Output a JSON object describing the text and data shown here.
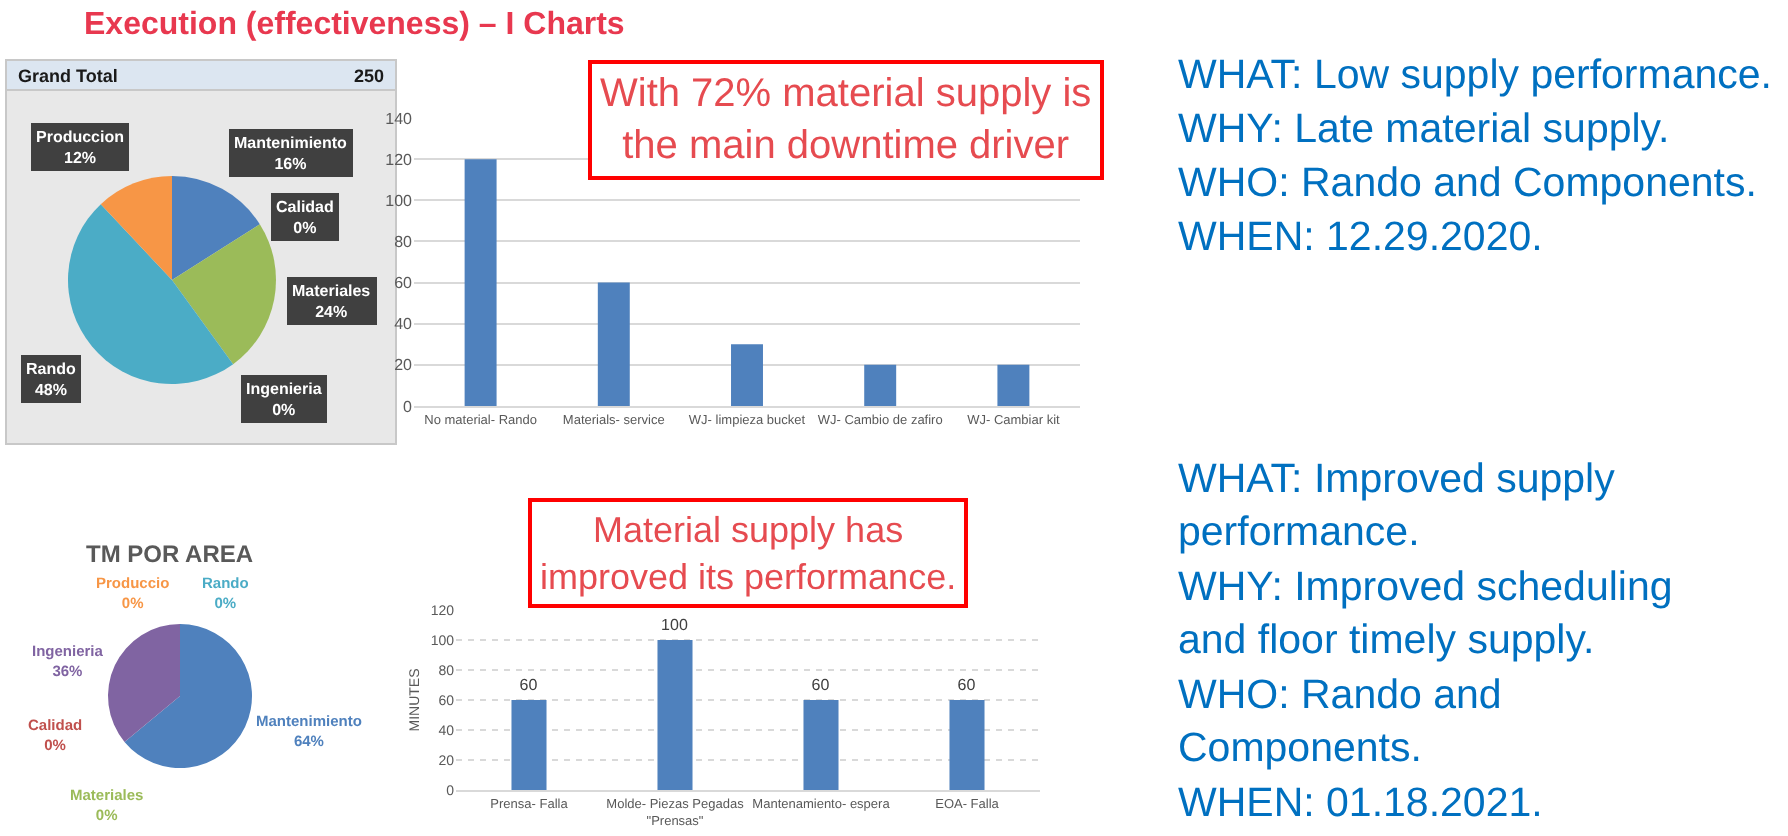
{
  "chart_data": [
    {
      "type": "pie",
      "title": "Execution (effectiveness) – I Charts",
      "subtitle": "Grand Total",
      "annotations": [
        "250"
      ],
      "categories": [
        "Mantenimiento",
        "Calidad",
        "Materiales",
        "Ingenieria",
        "Rando",
        "Produccion"
      ],
      "values": [
        16,
        0,
        24,
        0,
        48,
        12
      ],
      "value_labels": [
        "16%",
        "0%",
        "24%",
        "0%",
        "48%",
        "12%"
      ],
      "colors": [
        "#4f81bd",
        "#c0504d",
        "#9bbb59",
        "#8064a2",
        "#4bacc6",
        "#f79646"
      ]
    },
    {
      "type": "bar",
      "categories": [
        "No material- Rando",
        "Materials- service",
        "WJ- limpieza bucket",
        "WJ- Cambio de zafiro",
        "WJ- Cambiar kit"
      ],
      "values": [
        120,
        60,
        30,
        20,
        20
      ],
      "color": "#4f81bd",
      "ylim": [
        0,
        140
      ],
      "yticks": [
        0,
        20,
        40,
        60,
        80,
        100,
        120,
        140
      ],
      "grid": "y",
      "annotations": [
        "With 72% material supply is the main downtime driver"
      ]
    },
    {
      "type": "other",
      "annotations": [
        "WHAT: Low supply performance.",
        "WHY: Late material supply.",
        "WHO: Rando and Components.",
        "WHEN: 12.29.2020."
      ]
    },
    {
      "type": "pie",
      "title": "TM POR AREA",
      "categories": [
        "Mantenimiento",
        "Materiales",
        "Calidad",
        "Ingenieria",
        "Produccio",
        "Rando"
      ],
      "values": [
        64,
        0,
        0,
        36,
        0,
        0
      ],
      "value_labels": [
        "64%",
        "0%",
        "0%",
        "36%",
        "0%",
        "0%"
      ],
      "colors": [
        "#4f81bd",
        "#9bbb59",
        "#c0504d",
        "#8064a2",
        "#f79646",
        "#4bacc6"
      ]
    },
    {
      "type": "bar",
      "categories": [
        "Prensa- Falla",
        "Molde- Piezas Pegadas \"Prensas\"",
        "Mantenamiento- espera",
        "EOA- Falla"
      ],
      "values": [
        60,
        100,
        60,
        60
      ],
      "color": "#4f81bd",
      "ylabel": "MINUTES",
      "ylim": [
        0,
        120
      ],
      "yticks": [
        0,
        20,
        40,
        60,
        80,
        100,
        120
      ],
      "grid": "y",
      "data_labels": true,
      "annotations": [
        "Material supply has improved its performance."
      ]
    },
    {
      "type": "other",
      "annotations": [
        "WHAT: Improved supply performance.",
        "WHY: Improved scheduling and floor timely supply.",
        "WHO: Rando and Components.",
        "WHEN: 01.18.2021."
      ]
    }
  ]
}
